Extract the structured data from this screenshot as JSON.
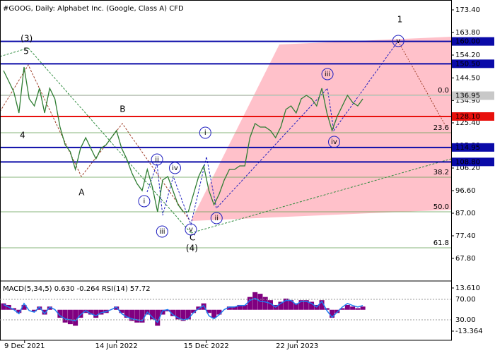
{
  "header": {
    "title": "#GOOG, Daily:  Alphabet Inc. (Google, Class A) CFD"
  },
  "chart_data": [
    {
      "type": "line",
      "color": "#2e7d32",
      "values": [
        147.6,
        143.1,
        138.6,
        129.6,
        149.1,
        135.6,
        132.6,
        140.1,
        129.6,
        140.1,
        135.6,
        123.6,
        116.1,
        113.1,
        105.6,
        114.6,
        119.1,
        114.6,
        110.1,
        114.6,
        116.1,
        119.1,
        122.1,
        114.6,
        110.1,
        104.1,
        99.6,
        96.6,
        105.6,
        98.1,
        87.6,
        101.1,
        102.6,
        96.6,
        90.6,
        87.6,
        87.6,
        95.1,
        102.6,
        107.1,
        96.6,
        90.6,
        95.1,
        101.1,
        105.6,
        105.6,
        107.1,
        107.1,
        119.1,
        125.1,
        123.6,
        123.6,
        122.1,
        119.1,
        123.6,
        131.1,
        132.6,
        129.6,
        135.6,
        137.1,
        135.6,
        132.6,
        140.1,
        129.6,
        122.1,
        128.1,
        132.6,
        137.1,
        134.1,
        132.6,
        135.6
      ],
      "xlim": [
        -0.69,
        87.2
      ],
      "xticks": [
        {
          "value": 4.1,
          "label": "9 Dec 2021"
        },
        {
          "value": 22.0,
          "label": "14 Jun 2022"
        },
        {
          "value": 39.5,
          "label": "15 Dec 2022"
        },
        {
          "value": 57.2,
          "label": "22 Jun 2023"
        }
      ],
      "ylim": [
        58.2,
        177.6
      ],
      "yticks": [
        {
          "value": 173.4,
          "label": "173.40"
        },
        {
          "value": 163.8,
          "label": "163.80"
        },
        {
          "value": 154.2,
          "label": "154.20"
        },
        {
          "value": 144.5,
          "label": "144.50"
        },
        {
          "value": 134.9,
          "label": "134.90"
        },
        {
          "value": 125.4,
          "label": "125.40"
        },
        {
          "value": 115.8,
          "label": "115.80"
        },
        {
          "value": 106.2,
          "label": "106.20"
        },
        {
          "value": 96.6,
          "label": "96.60"
        },
        {
          "value": 87,
          "label": "87.00"
        },
        {
          "value": 77.4,
          "label": "77.40"
        },
        {
          "value": 67.8,
          "label": "67.80"
        }
      ],
      "levels": [
        {
          "value": 160,
          "label": "160.00",
          "color": "#0a0aa8"
        },
        {
          "value": 150.5,
          "label": "150.50",
          "color": "#0a0aa8"
        },
        {
          "value": 136.95,
          "label": "136.95",
          "color": "#c8c8c8"
        },
        {
          "value": 128.1,
          "label": "128.10",
          "color": "#e8100c"
        },
        {
          "value": 114.95,
          "label": "114.95",
          "color": "#0a0aa8"
        },
        {
          "value": 108.8,
          "label": "108.80",
          "color": "#0a0aa8"
        }
      ],
      "fib_levels": [
        {
          "label": "0.0",
          "price": 137.1
        },
        {
          "label": "23.6",
          "price": 121.2
        },
        {
          "label": "38.2",
          "price": 102.3
        },
        {
          "label": "50.0",
          "price": 87.6
        },
        {
          "label": "61.8",
          "price": 72.3
        }
      ],
      "fib_color": "#5f9e4f",
      "annotations": [
        {
          "text": "(3)",
          "x": 4.5,
          "price": 161.1,
          "color": "#2e8b3e"
        },
        {
          "text": "5",
          "x": 4.4,
          "price": 155.7,
          "color": "#a0402a"
        },
        {
          "text": "4",
          "x": 3.7,
          "price": 120.0,
          "color": "#a0402a"
        },
        {
          "text": "B",
          "x": 23.2,
          "price": 131.1,
          "color": "#a0402a"
        },
        {
          "text": "A",
          "x": 15.2,
          "price": 95.7,
          "color": "#a0402a"
        },
        {
          "text": "C",
          "x": 36.8,
          "price": 76.5,
          "color": "#a0402a"
        },
        {
          "text": "(4)",
          "x": 36.7,
          "price": 72.0,
          "color": "#2e8b3e"
        },
        {
          "text": "1",
          "x": 77.2,
          "price": 169.2,
          "color": "#a0402a"
        },
        {
          "text": "i",
          "x": 27.4,
          "price": 92.1,
          "color": "#2020c0",
          "circled": true
        },
        {
          "text": "ii",
          "x": 29.9,
          "price": 109.8,
          "color": "#2020c0",
          "circled": true
        },
        {
          "text": "iii",
          "x": 30.9,
          "price": 79.2,
          "color": "#2020c0",
          "circled": true
        },
        {
          "text": "iv",
          "x": 33.4,
          "price": 106.2,
          "color": "#2020c0",
          "circled": true
        },
        {
          "text": "v",
          "x": 36.5,
          "price": 80.1,
          "color": "#2020c0",
          "circled": true
        },
        {
          "text": "i",
          "x": 39.3,
          "price": 121.2,
          "color": "#2020c0",
          "circled": true
        },
        {
          "text": "ii",
          "x": 41.5,
          "price": 84.9,
          "color": "#2020c0",
          "circled": true
        },
        {
          "text": "iii",
          "x": 63.1,
          "price": 146.1,
          "color": "#2020c0",
          "circled": true
        },
        {
          "text": "iv",
          "x": 64.4,
          "price": 117.3,
          "color": "#2020c0",
          "circled": true
        },
        {
          "text": "v",
          "x": 76.9,
          "price": 160.2,
          "color": "#2020c0",
          "circled": true
        }
      ]
    },
    {
      "type": "macd",
      "title": "MACD(5,34,5) 0.630 -0.264 RSI(14) 57.72",
      "ylim": [
        -19.1,
        18.0
      ],
      "yticks": [
        {
          "value": 13.61,
          "label": "13.610"
        },
        {
          "value": -13.364,
          "label": "-13.364"
        }
      ],
      "y2lim": [
        -10,
        105.9
      ],
      "y2ticks": [
        {
          "value": 70,
          "label": "70.00"
        },
        {
          "value": 30,
          "label": "30.00"
        }
      ],
      "series": [
        {
          "name": "MACD",
          "color": "#800080",
          "values": [
            4,
            3,
            1,
            -2,
            3,
            0,
            -1,
            2,
            -3,
            2,
            0,
            -5,
            -8,
            -9,
            -10,
            -5,
            -2,
            -3,
            -5,
            -3,
            -2,
            0,
            2,
            -2,
            -5,
            -7,
            -8,
            -8,
            -3,
            -6,
            -10,
            -3,
            -1,
            -4,
            -6,
            -7,
            -6,
            -2,
            2,
            4,
            -2,
            -5,
            -3,
            0,
            2,
            2,
            3,
            3,
            8,
            11,
            10,
            8,
            6,
            3,
            5,
            7,
            6,
            4,
            6,
            6,
            5,
            3,
            6,
            1,
            -5,
            -2,
            1,
            3,
            2,
            1,
            2
          ]
        },
        {
          "name": "RSI",
          "color": "#1e7cf0",
          "axis": "y2",
          "values": [
            60,
            55,
            50,
            42,
            62,
            48,
            45,
            55,
            42,
            55,
            50,
            38,
            32,
            30,
            28,
            40,
            48,
            42,
            38,
            44,
            46,
            50,
            55,
            42,
            36,
            32,
            30,
            28,
            45,
            35,
            25,
            48,
            50,
            40,
            34,
            30,
            32,
            44,
            52,
            58,
            38,
            32,
            40,
            50,
            55,
            55,
            58,
            58,
            68,
            72,
            66,
            65,
            62,
            55,
            62,
            68,
            68,
            60,
            66,
            66,
            62,
            55,
            66,
            48,
            35,
            45,
            55,
            62,
            58,
            55,
            58
          ]
        }
      ]
    }
  ]
}
